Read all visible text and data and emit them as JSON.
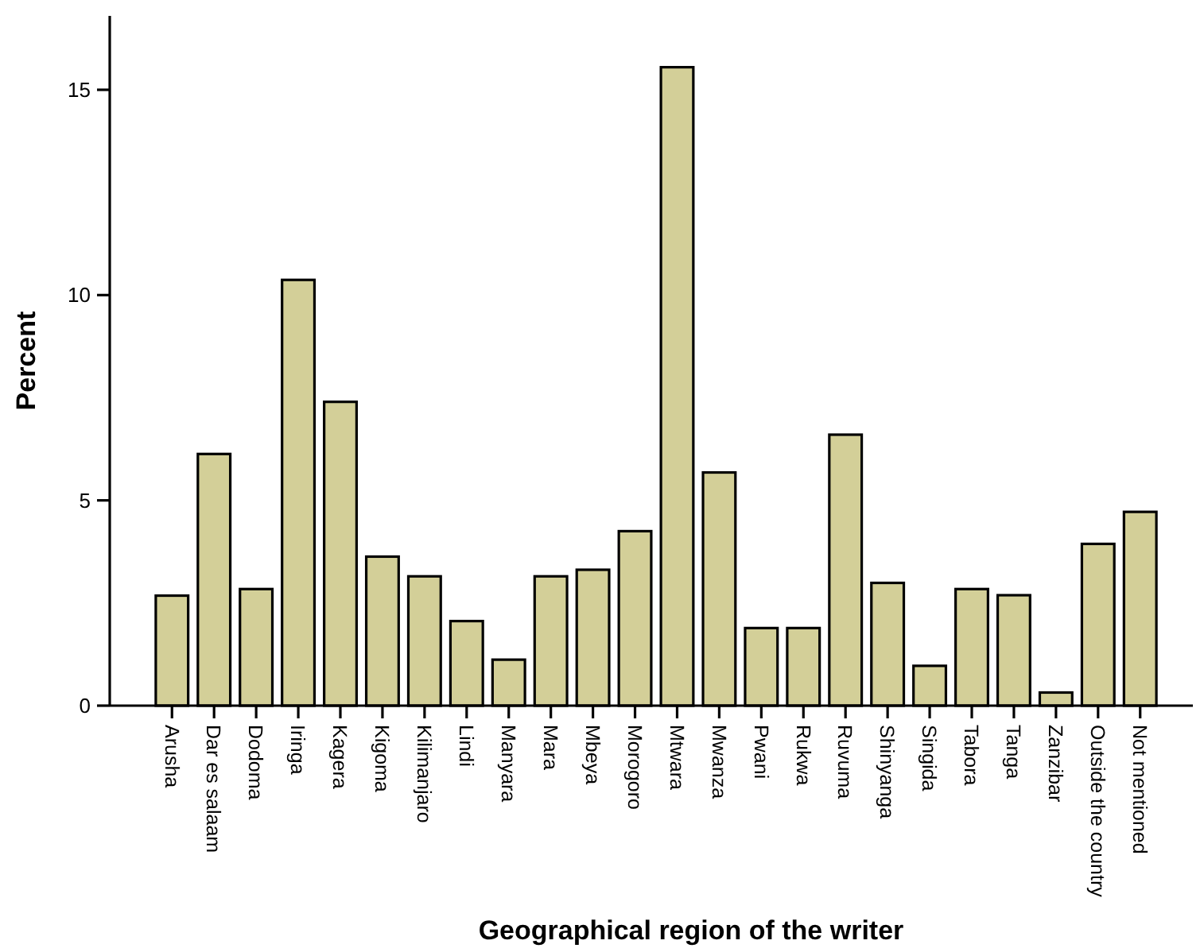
{
  "chart_data": {
    "type": "bar",
    "xlabel": "Geographical region of the writer",
    "ylabel": "Percent",
    "categories": [
      "Arusha",
      "Dar es salaam",
      "Dodoma",
      "Iringa",
      "Kagera",
      "Kigoma",
      "Kilimanjaro",
      "Lindi",
      "Manyara",
      "Mara",
      "Mbeya",
      "Morogoro",
      "Mtwara",
      "Mwanza",
      "Pwani",
      "Rukwa",
      "Ruvuma",
      "Shinyanga",
      "Singida",
      "Tabora",
      "Tanga",
      "Zanzibar",
      "Outside the country",
      "Not mentioned"
    ],
    "values": [
      2.68,
      6.13,
      2.84,
      10.37,
      7.4,
      3.63,
      3.15,
      2.06,
      1.12,
      3.15,
      3.31,
      4.25,
      15.55,
      5.68,
      1.89,
      1.89,
      6.6,
      2.99,
      0.97,
      2.84,
      2.69,
      0.32,
      3.94,
      4.72
    ],
    "color": "#d3cf98",
    "ylim": [
      0,
      16.8
    ],
    "yticks": [
      0,
      5,
      10,
      15
    ],
    "grid": false
  }
}
